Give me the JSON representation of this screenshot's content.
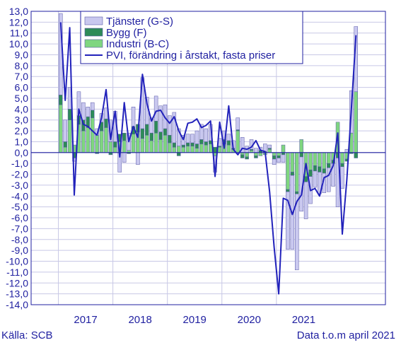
{
  "chart_data": {
    "type": "bar",
    "stacked": true,
    "frequency": "monthly",
    "ylim": [
      -14,
      13
    ],
    "ytick_step": 1,
    "ytick_labels": [
      "13,0",
      "12,0",
      "11,0",
      "10,0",
      "9,0",
      "8,0",
      "7,0",
      "6,0",
      "5,0",
      "4,0",
      "3,0",
      "2,0",
      "1,0",
      "0,0",
      "-1,0",
      "-2,0",
      "-3,0",
      "-4,0",
      "-5,0",
      "-6,0",
      "-7,0",
      "-8,0",
      "-9,0",
      "-10,0",
      "-11,0",
      "-12,0",
      "-13,0",
      "-14,0"
    ],
    "year_labels": [
      "2017",
      "2018",
      "2019",
      "2020",
      "2021"
    ],
    "grid": true,
    "legend_position": "top-center",
    "series": [
      {
        "name": "Tjänster (G-S)",
        "kind": "bar",
        "color": "#c9c8ef",
        "values": [
          7.5,
          2.0,
          2.0,
          -0.3,
          2.2,
          1.6,
          0.9,
          0.7,
          0.6,
          0.8,
          1.0,
          2.0,
          2.8,
          -1.8,
          -0.9,
          1.6,
          1.8,
          -1.1,
          4.7,
          2.5,
          1.4,
          2.3,
          2.4,
          2.2,
          1.8,
          2.8,
          1.6,
          0.9,
          0.8,
          0.8,
          1.2,
          1.4,
          1.2,
          1.5,
          -1.5,
          0.7,
          0.8,
          0.6,
          0.7,
          1.1,
          1.4,
          0.6,
          0.9,
          0.4,
          0.3,
          0.7,
          0.3,
          -0.5,
          -0.4,
          -0.7,
          -5.3,
          -6.8,
          -7.0,
          -5.0,
          -3.4,
          -2.5,
          -1.5,
          -2.0,
          -1.8,
          -2.2,
          -2.1,
          -4.5,
          -2.0,
          0.3,
          3.9,
          6.0
        ]
      },
      {
        "name": "Bygg (F)",
        "kind": "bar",
        "color": "#2e8b57",
        "values": [
          0.9,
          0.5,
          1.0,
          -0.5,
          0.8,
          1.0,
          1.0,
          0.7,
          -0.1,
          0.8,
          0.8,
          -0.2,
          0.5,
          0.7,
          0.7,
          -0.1,
          0.7,
          0.7,
          0.9,
          1.0,
          0.7,
          1.1,
          0.7,
          0.6,
          0.7,
          0.4,
          -0.3,
          0.2,
          0.3,
          0.3,
          0.4,
          0.4,
          0.3,
          0.3,
          0.5,
          0.1,
          0.4,
          0.4,
          0.1,
          0.1,
          -0.3,
          -0.2,
          0.1,
          -0.2,
          0.2,
          0.1,
          0.1,
          -0.3,
          -0.2,
          -0.2,
          -0.2,
          -0.3,
          -0.2,
          -0.4,
          -0.5,
          -0.6,
          -0.5,
          -0.5,
          -0.4,
          -0.4,
          -0.3,
          -0.5,
          -0.3,
          -0.2,
          -0.1,
          -0.5
        ]
      },
      {
        "name": "Industri (B-C)",
        "kind": "bar",
        "color": "#7fd67f",
        "values": [
          4.4,
          0.5,
          3.0,
          0.7,
          2.6,
          2.0,
          2.3,
          3.2,
          1.6,
          2.0,
          2.3,
          1.0,
          0.5,
          1.0,
          1.1,
          0.2,
          1.7,
          1.9,
          1.3,
          1.6,
          1.1,
          1.8,
          1.2,
          1.6,
          0.9,
          0.5,
          0.6,
          0.5,
          0.6,
          0.6,
          0.4,
          0.8,
          0.7,
          0.8,
          -0.3,
          0.5,
          0.8,
          0.7,
          0.3,
          2.0,
          -0.2,
          -0.4,
          0.2,
          -0.3,
          -0.3,
          -0.2,
          0.3,
          -0.3,
          -0.3,
          0.7,
          -3.4,
          -1.8,
          -3.6,
          1.2,
          -2.2,
          -1.6,
          -1.2,
          -1.3,
          -1.5,
          -1.0,
          -0.7,
          2.8,
          -1.0,
          -0.6,
          1.8,
          5.6
        ]
      },
      {
        "name": "PVI, förändring i årstakt, fasta priser",
        "kind": "line",
        "color": "#2222bb",
        "values": [
          12.0,
          4.8,
          11.5,
          -3.9,
          4.0,
          2.6,
          2.4,
          2.0,
          1.6,
          3.2,
          5.8,
          1.2,
          3.8,
          -0.4,
          4.6,
          1.0,
          2.4,
          1.4,
          7.2,
          4.5,
          2.9,
          3.8,
          3.9,
          3.2,
          2.7,
          3.3,
          2.0,
          1.2,
          2.7,
          2.8,
          3.1,
          2.3,
          2.5,
          2.9,
          -2.2,
          2.8,
          0.4,
          4.3,
          0.3,
          -0.2,
          0.4,
          0.3,
          0.5,
          1.1,
          0.2,
          0.1,
          -3.6,
          -8.7,
          -13.0,
          -4.2,
          -4.4,
          -5.7,
          -4.5,
          -3.9,
          -1.0,
          -3.5,
          -3.3,
          -4.0,
          -2.3,
          -2.1,
          -1.2,
          1.8,
          -7.5,
          -2.5,
          4.0,
          10.8
        ]
      }
    ]
  },
  "footer": {
    "source": "Källa: SCB",
    "data_note": "Data t.o.m april 2021"
  },
  "colors": {
    "axis_text": "#1f1fa0",
    "grid": "#c8c8e6",
    "frame": "#1f1fa0"
  }
}
